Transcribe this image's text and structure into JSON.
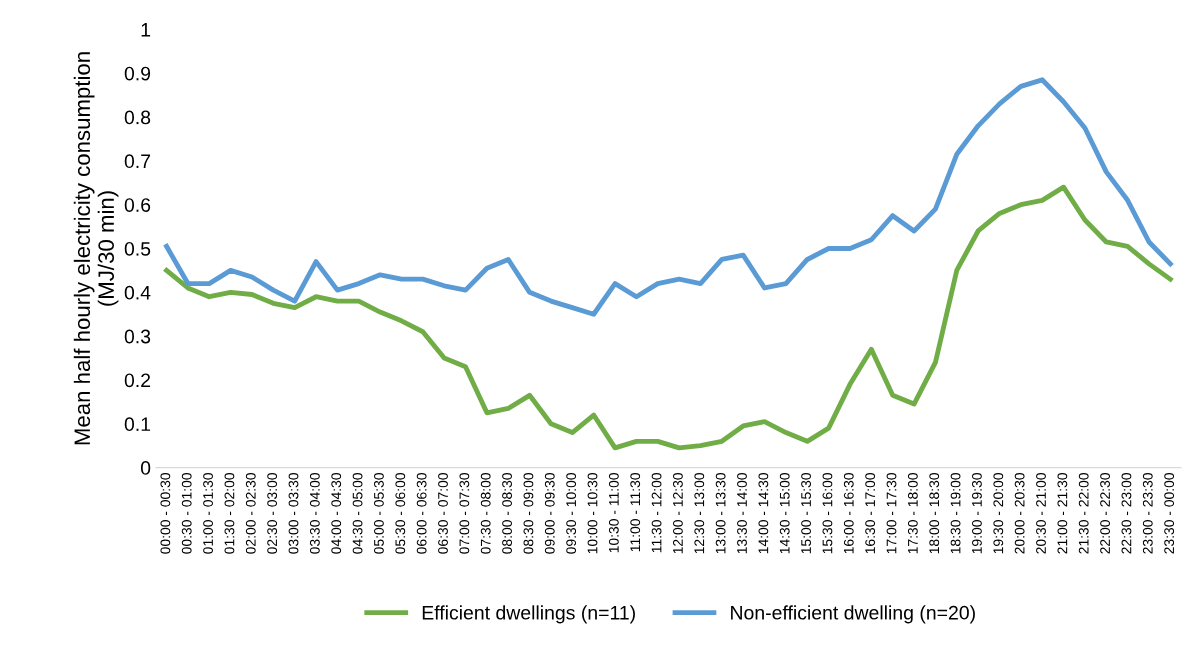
{
  "chart_data": {
    "type": "line",
    "ylabel": "Mean half hourly electricity consumption\n(MJ/30 min)",
    "categories": [
      "00:00 - 00:30",
      "00:30 - 01:00",
      "01:00 - 01:30",
      "01:30 - 02:00",
      "02:00 - 02:30",
      "02:30 - 03:00",
      "03:00 - 03:30",
      "03:30 - 04:00",
      "04:00 - 04:30",
      "04:30 - 05:00",
      "05:00 - 05:30",
      "05:30 - 06:00",
      "06:00 - 06:30",
      "06:30 - 07:00",
      "07:00 - 07:30",
      "07:30 - 08:00",
      "08:00 - 08:30",
      "08:30 - 09:00",
      "09:00 - 09:30",
      "09:30 - 10:00",
      "10:00 - 10:30",
      "10:30 - 11:00",
      "11:00 - 11:30",
      "11:30 - 12:00",
      "12:00 - 12:30",
      "12:30 - 13:00",
      "13:00 - 13:30",
      "13:30 - 14:00",
      "14:00 - 14:30",
      "14:30 - 15:00",
      "15:00 - 15:30",
      "15:30 - 16:00",
      "16:00 - 16:30",
      "16:30 - 17:00",
      "17:00 - 17:30",
      "17:30 - 18:00",
      "18:00 - 18:30",
      "18:30 - 19:00",
      "19:00 - 19:30",
      "19:30 - 20:00",
      "20:00 - 20:30",
      "20:30 - 21:00",
      "21:00 - 21:30",
      "21:30 - 22:00",
      "22:00 - 22:30",
      "22:30 - 23:00",
      "23:00 - 23:30",
      "23:30 - 00:00"
    ],
    "series": [
      {
        "name": "Efficient dwellings (n=11)",
        "color": "#70ad47",
        "values": [
          0.45,
          0.41,
          0.39,
          0.4,
          0.395,
          0.375,
          0.365,
          0.39,
          0.38,
          0.38,
          0.355,
          0.335,
          0.31,
          0.25,
          0.23,
          0.125,
          0.135,
          0.165,
          0.1,
          0.08,
          0.12,
          0.045,
          0.06,
          0.06,
          0.045,
          0.05,
          0.06,
          0.095,
          0.105,
          0.08,
          0.06,
          0.09,
          0.19,
          0.27,
          0.165,
          0.145,
          0.24,
          0.45,
          0.54,
          0.58,
          0.6,
          0.61,
          0.64,
          0.565,
          0.515,
          0.505,
          0.465,
          0.43
        ]
      },
      {
        "name": "Non-efficient dwelling (n=20)",
        "color": "#5b9bd5",
        "values": [
          0.505,
          0.42,
          0.42,
          0.45,
          0.435,
          0.405,
          0.38,
          0.47,
          0.405,
          0.42,
          0.44,
          0.43,
          0.43,
          0.415,
          0.405,
          0.455,
          0.475,
          0.4,
          0.38,
          0.365,
          0.35,
          0.42,
          0.39,
          0.42,
          0.43,
          0.42,
          0.475,
          0.485,
          0.41,
          0.42,
          0.475,
          0.5,
          0.5,
          0.52,
          0.575,
          0.54,
          0.59,
          0.715,
          0.78,
          0.83,
          0.87,
          0.885,
          0.835,
          0.775,
          0.675,
          0.61,
          0.515,
          0.465
        ]
      }
    ],
    "ylim": [
      0,
      1
    ],
    "yticks": [
      0,
      0.1,
      0.2,
      0.3,
      0.4,
      0.5,
      0.6,
      0.7,
      0.8,
      0.9,
      1
    ],
    "grid": false,
    "legend": "bottom",
    "marker": "none",
    "line_style": "solid"
  }
}
